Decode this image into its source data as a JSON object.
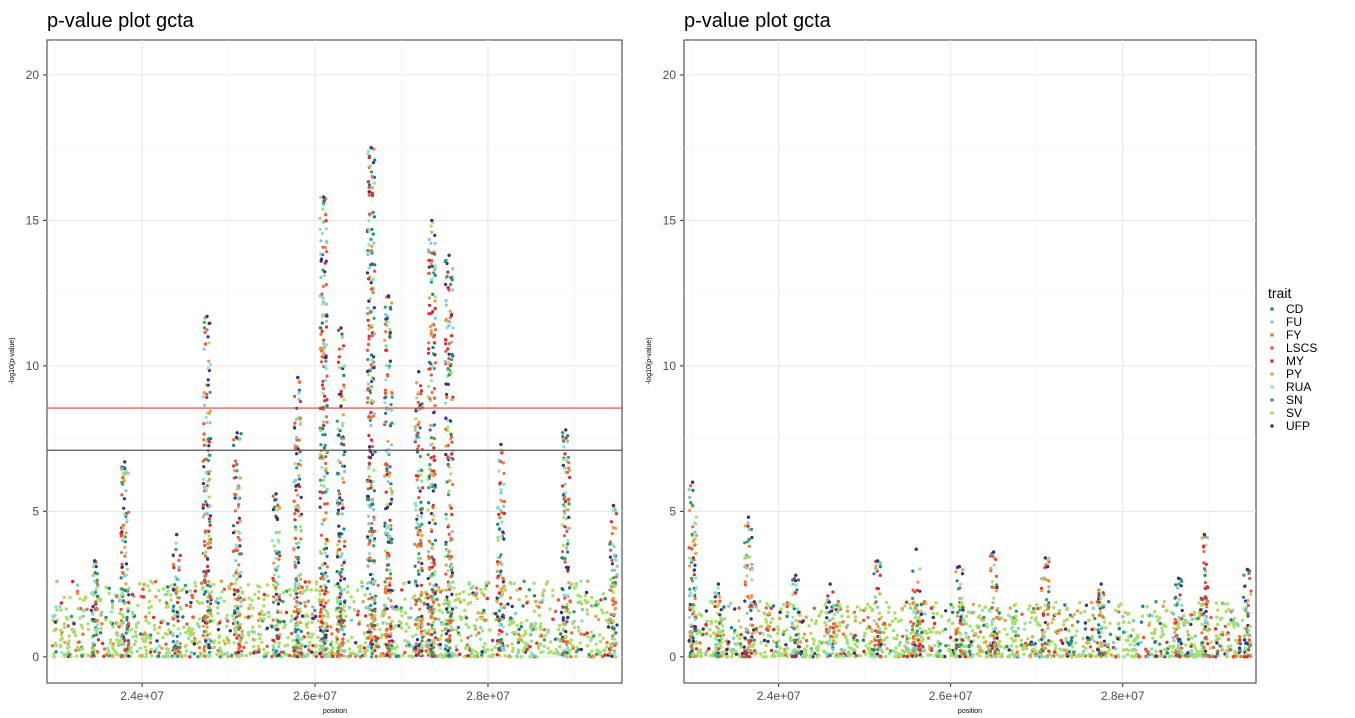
{
  "chart_data": [
    {
      "type": "scatter",
      "title": "p-value plot gcta",
      "xlabel": "position",
      "ylabel": "-log10(p-value)",
      "xlim": [
        22900000,
        29550000
      ],
      "ylim": [
        -0.9,
        21.2
      ],
      "x_ticks": [
        24000000,
        26000000,
        28000000
      ],
      "x_tick_labels": [
        "2.4e+07",
        "2.6e+07",
        "2.8e+07"
      ],
      "y_ticks": [
        0,
        5,
        10,
        15,
        20
      ],
      "y_tick_labels": [
        "0",
        "5",
        "10",
        "15",
        "20"
      ],
      "grid": true,
      "hlines": [
        {
          "y": 8.55,
          "color": "#ef3b2c"
        },
        {
          "y": 7.1,
          "color": "#555555"
        }
      ],
      "peaks": [
        {
          "x": 23450000,
          "y": 3.3
        },
        {
          "x": 23800000,
          "y": 6.7
        },
        {
          "x": 24400000,
          "y": 4.2
        },
        {
          "x": 24750000,
          "y": 11.7
        },
        {
          "x": 25100000,
          "y": 7.7
        },
        {
          "x": 25550000,
          "y": 5.6
        },
        {
          "x": 25800000,
          "y": 9.6
        },
        {
          "x": 26100000,
          "y": 15.8
        },
        {
          "x": 26300000,
          "y": 11.3
        },
        {
          "x": 26650000,
          "y": 17.5
        },
        {
          "x": 26850000,
          "y": 12.4
        },
        {
          "x": 27200000,
          "y": 9.8
        },
        {
          "x": 27350000,
          "y": 15.0
        },
        {
          "x": 27550000,
          "y": 13.8
        },
        {
          "x": 28150000,
          "y": 7.3
        },
        {
          "x": 28900000,
          "y": 7.8
        },
        {
          "x": 29450000,
          "y": 5.2
        }
      ]
    },
    {
      "type": "scatter",
      "title": "p-value plot gcta",
      "xlabel": "position",
      "ylabel": "-log10(p-value)",
      "xlim": [
        22900000,
        29550000
      ],
      "ylim": [
        -0.9,
        21.2
      ],
      "x_ticks": [
        24000000,
        26000000,
        28000000
      ],
      "x_tick_labels": [
        "2.4e+07",
        "2.6e+07",
        "2.8e+07"
      ],
      "y_ticks": [
        0,
        5,
        10,
        15,
        20
      ],
      "y_tick_labels": [
        "0",
        "5",
        "10",
        "15",
        "20"
      ],
      "grid": true,
      "peaks": [
        {
          "x": 23000000,
          "y": 6.0
        },
        {
          "x": 23300000,
          "y": 2.5
        },
        {
          "x": 23650000,
          "y": 4.8
        },
        {
          "x": 24200000,
          "y": 2.8
        },
        {
          "x": 24600000,
          "y": 2.5
        },
        {
          "x": 25150000,
          "y": 3.3
        },
        {
          "x": 25600000,
          "y": 3.7
        },
        {
          "x": 26100000,
          "y": 3.1
        },
        {
          "x": 26500000,
          "y": 3.6
        },
        {
          "x": 27100000,
          "y": 3.4
        },
        {
          "x": 27750000,
          "y": 2.5
        },
        {
          "x": 28650000,
          "y": 2.7
        },
        {
          "x": 28950000,
          "y": 4.2
        },
        {
          "x": 29450000,
          "y": 3.0
        }
      ]
    }
  ],
  "legend": {
    "title": "trait",
    "items": [
      {
        "label": "CD",
        "color": "#17808f"
      },
      {
        "label": "FU",
        "color": "#7ec8d8"
      },
      {
        "label": "FY",
        "color": "#f4702b"
      },
      {
        "label": "LSCS",
        "color": "#f0533a"
      },
      {
        "label": "MY",
        "color": "#e8242c"
      },
      {
        "label": "PY",
        "color": "#f59a3c"
      },
      {
        "label": "RUA",
        "color": "#7fe6d0"
      },
      {
        "label": "SN",
        "color": "#2aa36a"
      },
      {
        "label": "SV",
        "color": "#a8e063"
      },
      {
        "label": "UFP",
        "color": "#3b2f7f"
      }
    ]
  }
}
